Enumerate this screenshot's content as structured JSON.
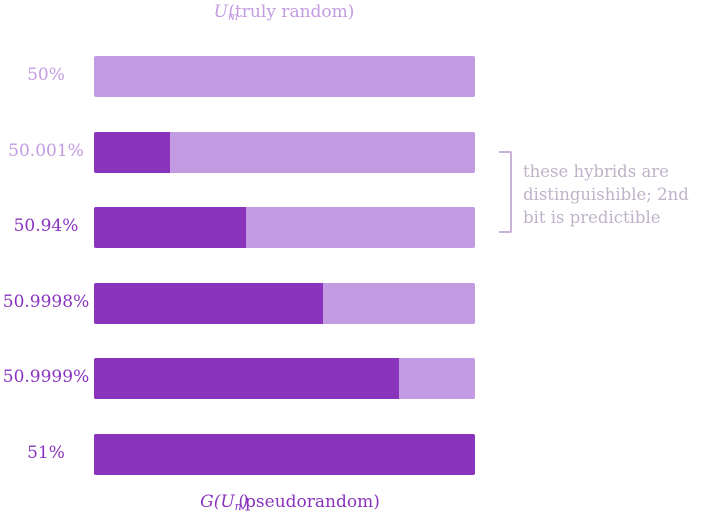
{
  "colors": {
    "pseudorandom": "#8a34be",
    "truly_random": "#c39be2",
    "bracket": "#c9b3da",
    "note": "#bfb3c9"
  },
  "top_label": {
    "symbol": "U",
    "subscript": "m",
    "text": "(truly random)"
  },
  "bottom_label": {
    "symbol": "G(U",
    "subscript": "n",
    "close": ")",
    "text": "(pseudorandom)"
  },
  "rows": [
    {
      "label": "50%",
      "label_color": "truly_random",
      "pseudo_fraction": 0.0
    },
    {
      "label": "50.001%",
      "label_color": "truly_random",
      "pseudo_fraction": 0.2
    },
    {
      "label": "50.94%",
      "label_color": "pseudorandom",
      "pseudo_fraction": 0.4
    },
    {
      "label": "50.9998%",
      "label_color": "pseudorandom",
      "pseudo_fraction": 0.6
    },
    {
      "label": "50.9999%",
      "label_color": "pseudorandom",
      "pseudo_fraction": 0.8
    },
    {
      "label": "51%",
      "label_color": "pseudorandom",
      "pseudo_fraction": 1.0
    }
  ],
  "annotation": {
    "lines": [
      "these hybrids are",
      "distinguishible; 2nd",
      "bit is predictible"
    ]
  }
}
